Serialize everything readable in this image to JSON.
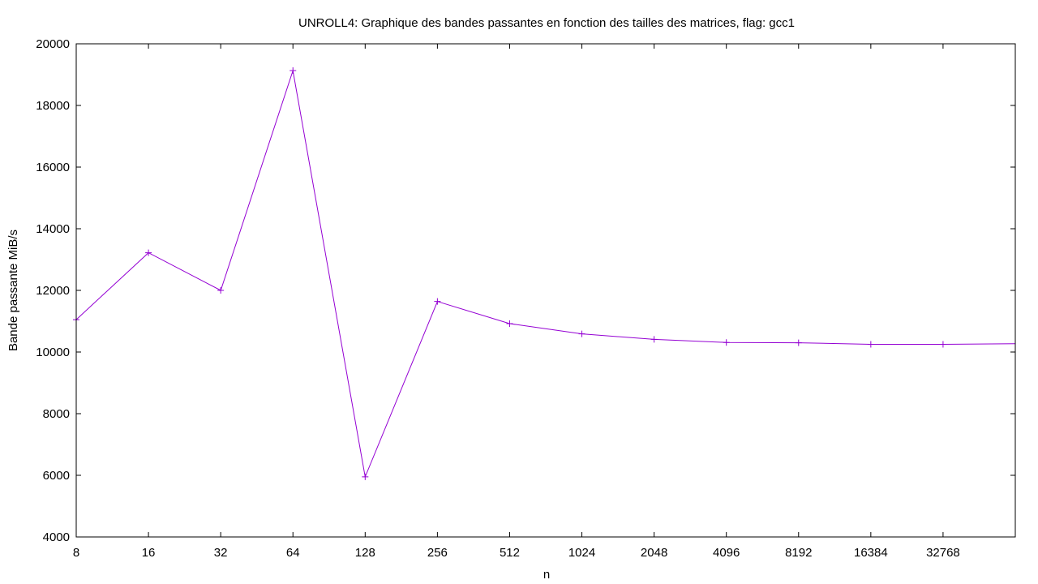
{
  "chart_data": {
    "type": "line",
    "title": "UNROLL4: Graphique des bandes passantes en fonction des tailles des matrices, flag: gcc1",
    "xlabel": "n",
    "ylabel": "Bande passante MiB/s",
    "x_scale": "log2",
    "xlim": [
      8,
      65536
    ],
    "ylim": [
      4000,
      20000
    ],
    "x_ticks": [
      "8",
      "16",
      "32",
      "64",
      "128",
      "256",
      "512",
      "1024",
      "2048",
      "4096",
      "8192",
      "16384",
      "32768"
    ],
    "y_ticks": [
      "4000",
      "6000",
      "8000",
      "10000",
      "12000",
      "14000",
      "16000",
      "18000",
      "20000"
    ],
    "grid": false,
    "legend": "none",
    "series": [
      {
        "color": "#9400d3",
        "marker": "plus",
        "x": [
          8,
          16,
          32,
          64,
          128,
          256,
          512,
          1024,
          2048,
          4096,
          8192,
          16384,
          32768,
          65536
        ],
        "values": [
          11050,
          13220,
          12000,
          19130,
          5950,
          11640,
          10920,
          10590,
          10410,
          10310,
          10300,
          10250,
          10250,
          10270
        ]
      }
    ]
  }
}
